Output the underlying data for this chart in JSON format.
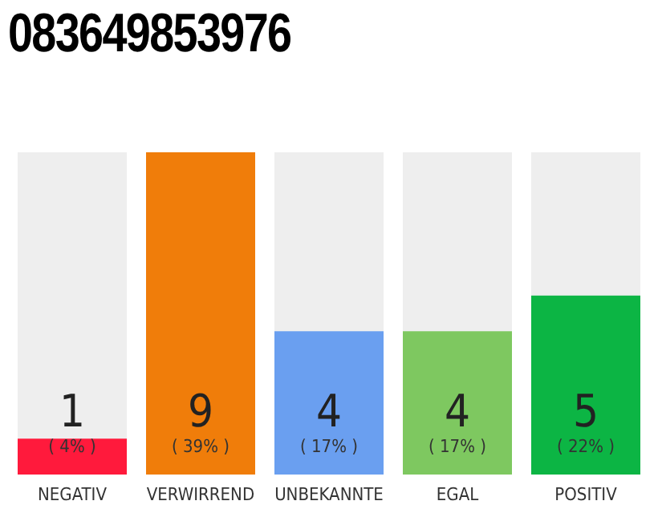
{
  "chart_data": {
    "type": "bar",
    "title": "083649853976",
    "categories": [
      "NEGATIV",
      "VERWIRREND",
      "UNBEKANNTE",
      "EGAL",
      "POSITIV"
    ],
    "values": [
      1,
      9,
      4,
      4,
      5
    ],
    "colors": [
      "#ff1a3c",
      "#f07d0a",
      "#6a9ff0",
      "#7ec860",
      "#0cb544"
    ],
    "data_labels": true,
    "annotations": [
      "( 4% )",
      "( 39% )",
      "( 17% )",
      "( 17% )",
      "( 22% )"
    ],
    "grid": false,
    "legend": false
  }
}
